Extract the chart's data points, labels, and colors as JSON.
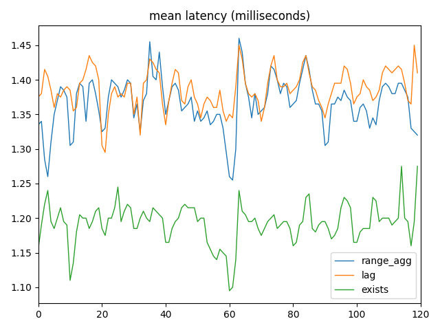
{
  "title": "mean latency (milliseconds)",
  "color_range_agg": "#1f77b4",
  "color_lag": "#ff7f0e",
  "color_exists": "#2ca02c",
  "xlim": [
    0,
    120
  ],
  "legend_labels": [
    "range_agg",
    "lag",
    "exists"
  ],
  "legend_loc": "lower right",
  "range_agg": [
    1.335,
    1.34,
    1.285,
    1.26,
    1.31,
    1.35,
    1.37,
    1.39,
    1.385,
    1.375,
    1.305,
    1.31,
    1.38,
    1.395,
    1.39,
    1.34,
    1.395,
    1.4,
    1.38,
    1.355,
    1.325,
    1.33,
    1.375,
    1.4,
    1.395,
    1.39,
    1.375,
    1.385,
    1.4,
    1.395,
    1.345,
    1.365,
    1.325,
    1.37,
    1.38,
    1.455,
    1.405,
    1.4,
    1.44,
    1.39,
    1.35,
    1.37,
    1.39,
    1.395,
    1.385,
    1.355,
    1.36,
    1.365,
    1.375,
    1.34,
    1.355,
    1.34,
    1.345,
    1.355,
    1.335,
    1.34,
    1.35,
    1.35,
    1.33,
    1.295,
    1.26,
    1.255,
    1.3,
    1.46,
    1.44,
    1.395,
    1.375,
    1.345,
    1.38,
    1.35,
    1.355,
    1.36,
    1.38,
    1.42,
    1.415,
    1.4,
    1.38,
    1.395,
    1.39,
    1.36,
    1.365,
    1.37,
    1.395,
    1.415,
    1.435,
    1.415,
    1.385,
    1.365,
    1.365,
    1.355,
    1.305,
    1.31,
    1.365,
    1.365,
    1.375,
    1.37,
    1.385,
    1.375,
    1.37,
    1.34,
    1.34,
    1.36,
    1.365,
    1.355,
    1.33,
    1.345,
    1.335,
    1.37,
    1.39,
    1.395,
    1.39,
    1.38,
    1.38,
    1.395,
    1.395,
    1.385,
    1.375,
    1.33,
    1.325,
    1.32
  ],
  "lag": [
    1.375,
    1.38,
    1.415,
    1.405,
    1.385,
    1.36,
    1.38,
    1.375,
    1.385,
    1.39,
    1.385,
    1.355,
    1.36,
    1.395,
    1.4,
    1.415,
    1.435,
    1.425,
    1.42,
    1.4,
    1.305,
    1.295,
    1.35,
    1.38,
    1.39,
    1.375,
    1.38,
    1.375,
    1.395,
    1.395,
    1.35,
    1.375,
    1.32,
    1.395,
    1.4,
    1.43,
    1.425,
    1.415,
    1.41,
    1.365,
    1.335,
    1.37,
    1.395,
    1.415,
    1.41,
    1.37,
    1.365,
    1.39,
    1.4,
    1.375,
    1.365,
    1.345,
    1.365,
    1.375,
    1.37,
    1.36,
    1.36,
    1.385,
    1.355,
    1.34,
    1.35,
    1.345,
    1.39,
    1.45,
    1.43,
    1.395,
    1.38,
    1.375,
    1.38,
    1.37,
    1.34,
    1.36,
    1.395,
    1.42,
    1.435,
    1.4,
    1.39,
    1.39,
    1.395,
    1.38,
    1.385,
    1.39,
    1.4,
    1.425,
    1.435,
    1.41,
    1.39,
    1.385,
    1.37,
    1.36,
    1.345,
    1.365,
    1.38,
    1.395,
    1.395,
    1.395,
    1.42,
    1.415,
    1.395,
    1.365,
    1.375,
    1.38,
    1.4,
    1.39,
    1.385,
    1.37,
    1.375,
    1.385,
    1.41,
    1.42,
    1.415,
    1.41,
    1.415,
    1.42,
    1.415,
    1.395,
    1.37,
    1.365,
    1.45,
    1.41
  ],
  "exists": [
    1.155,
    1.19,
    1.22,
    1.24,
    1.195,
    1.185,
    1.2,
    1.215,
    1.195,
    1.19,
    1.11,
    1.135,
    1.18,
    1.205,
    1.2,
    1.2,
    1.185,
    1.195,
    1.21,
    1.215,
    1.185,
    1.175,
    1.2,
    1.2,
    1.215,
    1.245,
    1.195,
    1.21,
    1.22,
    1.215,
    1.185,
    1.185,
    1.2,
    1.21,
    1.2,
    1.195,
    1.215,
    1.21,
    1.205,
    1.2,
    1.165,
    1.165,
    1.185,
    1.195,
    1.2,
    1.215,
    1.22,
    1.215,
    1.215,
    1.215,
    1.195,
    1.2,
    1.2,
    1.165,
    1.155,
    1.145,
    1.14,
    1.155,
    1.15,
    1.145,
    1.095,
    1.1,
    1.14,
    1.24,
    1.21,
    1.205,
    1.195,
    1.195,
    1.2,
    1.185,
    1.175,
    1.185,
    1.195,
    1.2,
    1.205,
    1.185,
    1.19,
    1.195,
    1.195,
    1.185,
    1.16,
    1.165,
    1.19,
    1.195,
    1.23,
    1.235,
    1.185,
    1.18,
    1.19,
    1.195,
    1.195,
    1.185,
    1.17,
    1.175,
    1.185,
    1.215,
    1.23,
    1.225,
    1.215,
    1.165,
    1.165,
    1.18,
    1.185,
    1.185,
    1.185,
    1.23,
    1.225,
    1.195,
    1.2,
    1.2,
    1.2,
    1.19,
    1.195,
    1.2,
    1.275,
    1.2,
    1.195,
    1.16,
    1.195,
    1.275
  ]
}
